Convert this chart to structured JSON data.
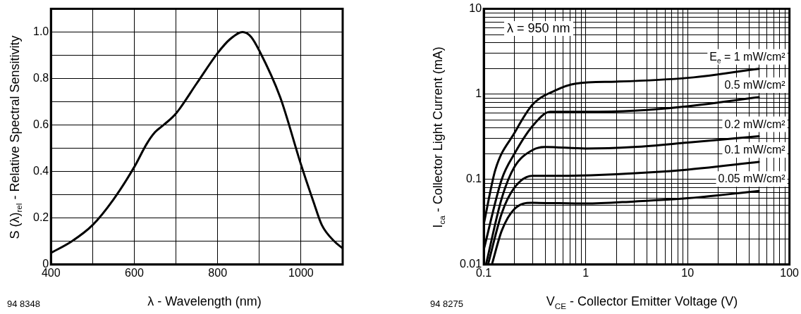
{
  "chart_data": [
    {
      "type": "line",
      "xlabel": "λ - Wavelength (nm)",
      "ylabel": "S (λ)$_{rel}$ - Relative Spectral Sensitivity",
      "annotations": [
        "94 8348"
      ],
      "xlim": [
        400,
        1100
      ],
      "xticks": [
        400,
        {
          "value": 500,
          "label": null
        },
        600,
        {
          "value": 700,
          "label": null
        },
        800,
        {
          "value": 900,
          "label": null
        },
        1000,
        {
          "value": 1100,
          "label": null
        }
      ],
      "ylim": [
        0,
        1.1
      ],
      "yticks": [
        0,
        {
          "value": 0.1,
          "label": null
        },
        0.2,
        {
          "value": 0.3,
          "label": null
        },
        0.4,
        {
          "value": 0.5,
          "label": null
        },
        0.6,
        {
          "value": 0.7,
          "label": null
        },
        0.8,
        {
          "value": 0.9,
          "label": null
        },
        {
          "value": 1,
          "label": "1.0"
        }
      ],
      "grid": true,
      "legend": false,
      "marker": "none",
      "line_style": "solid",
      "series": [
        {
          "color": "#000000",
          "x": [
            400,
            450,
            500,
            550,
            600,
            630,
            650,
            670,
            700,
            750,
            800,
            830,
            860,
            880,
            900,
            950,
            1000,
            1030,
            1050,
            1080,
            1100
          ],
          "values": [
            0.05,
            0.1,
            0.17,
            0.28,
            0.42,
            0.52,
            0.57,
            0.6,
            0.65,
            0.78,
            0.91,
            0.97,
            1.0,
            0.98,
            0.92,
            0.72,
            0.43,
            0.27,
            0.17,
            0.1,
            0.07
          ]
        }
      ]
    },
    {
      "type": "line",
      "xlabel": "V$_{CE}$ - Collector Emitter Voltage (V)",
      "ylabel": "I$_{ca}$ - Collector Light Current (mA)",
      "annotations": [
        "λ = 950 nm",
        "94 8275"
      ],
      "log": "xy",
      "xlim": [
        0.1,
        100
      ],
      "xticks": [
        0.1,
        {
          "value": 0.2,
          "label": null
        },
        {
          "value": 0.3,
          "label": null
        },
        {
          "value": 0.4,
          "label": null
        },
        {
          "value": 0.5,
          "label": null
        },
        {
          "value": 0.6,
          "label": null
        },
        {
          "value": 0.7,
          "label": null
        },
        {
          "value": 0.8,
          "label": null
        },
        {
          "value": 0.9,
          "label": null
        },
        1,
        {
          "value": 2,
          "label": null
        },
        {
          "value": 3,
          "label": null
        },
        {
          "value": 4,
          "label": null
        },
        {
          "value": 5,
          "label": null
        },
        {
          "value": 6,
          "label": null
        },
        {
          "value": 7,
          "label": null
        },
        {
          "value": 8,
          "label": null
        },
        {
          "value": 9,
          "label": null
        },
        10,
        {
          "value": 20,
          "label": null
        },
        {
          "value": 30,
          "label": null
        },
        {
          "value": 40,
          "label": null
        },
        {
          "value": 50,
          "label": null
        },
        {
          "value": 60,
          "label": null
        },
        {
          "value": 70,
          "label": null
        },
        {
          "value": 80,
          "label": null
        },
        {
          "value": 90,
          "label": null
        },
        100
      ],
      "ylim": [
        0.01,
        10
      ],
      "yticks": [
        0.01,
        {
          "value": 0.02,
          "label": null
        },
        {
          "value": 0.03,
          "label": null
        },
        {
          "value": 0.04,
          "label": null
        },
        {
          "value": 0.05,
          "label": null
        },
        {
          "value": 0.06,
          "label": null
        },
        {
          "value": 0.07,
          "label": null
        },
        {
          "value": 0.08,
          "label": null
        },
        {
          "value": 0.09,
          "label": null
        },
        0.1,
        {
          "value": 0.2,
          "label": null
        },
        {
          "value": 0.3,
          "label": null
        },
        {
          "value": 0.4,
          "label": null
        },
        {
          "value": 0.5,
          "label": null
        },
        {
          "value": 0.6,
          "label": null
        },
        {
          "value": 0.7,
          "label": null
        },
        {
          "value": 0.8,
          "label": null
        },
        {
          "value": 0.9,
          "label": null
        },
        1,
        {
          "value": 2,
          "label": null
        },
        {
          "value": 3,
          "label": null
        },
        {
          "value": 4,
          "label": null
        },
        {
          "value": 5,
          "label": null
        },
        {
          "value": 6,
          "label": null
        },
        {
          "value": 7,
          "label": null
        },
        {
          "value": 8,
          "label": null
        },
        {
          "value": 9,
          "label": null
        },
        10
      ],
      "grid": true,
      "legend": false,
      "marker": "none",
      "line_style": "solid",
      "series": [
        {
          "name": "E$_{e}$ = 1 mW/cm²",
          "color": "#000000",
          "x": [
            0.1,
            0.13,
            0.2,
            0.3,
            0.5,
            0.8,
            2,
            10,
            50
          ],
          "values": [
            0.03,
            0.13,
            0.35,
            0.75,
            1.1,
            1.33,
            1.4,
            1.55,
            1.98
          ]
        },
        {
          "name": "0.5 mW/cm²",
          "color": "#000000",
          "x": [
            0.1,
            0.15,
            0.2,
            0.3,
            0.45,
            1,
            3,
            10,
            50
          ],
          "values": [
            0.015,
            0.1,
            0.2,
            0.42,
            0.62,
            0.62,
            0.64,
            0.72,
            0.92
          ]
        },
        {
          "name": "0.2 mW/cm²",
          "color": "#000000",
          "x": [
            0.105,
            0.15,
            0.2,
            0.3,
            0.4,
            1,
            3,
            10,
            50
          ],
          "values": [
            0.01,
            0.06,
            0.14,
            0.22,
            0.24,
            0.23,
            0.24,
            0.27,
            0.32
          ]
        },
        {
          "name": "0.1 mW/cm²",
          "color": "#000000",
          "x": [
            0.11,
            0.15,
            0.2,
            0.3,
            0.5,
            2,
            10,
            50
          ],
          "values": [
            0.01,
            0.04,
            0.08,
            0.11,
            0.11,
            0.115,
            0.13,
            0.16
          ]
        },
        {
          "name": "0.05 mW/cm²",
          "color": "#000000",
          "x": [
            0.12,
            0.15,
            0.2,
            0.3,
            1,
            3,
            10,
            50
          ],
          "values": [
            0.01,
            0.025,
            0.045,
            0.053,
            0.052,
            0.055,
            0.06,
            0.073
          ]
        }
      ]
    }
  ]
}
